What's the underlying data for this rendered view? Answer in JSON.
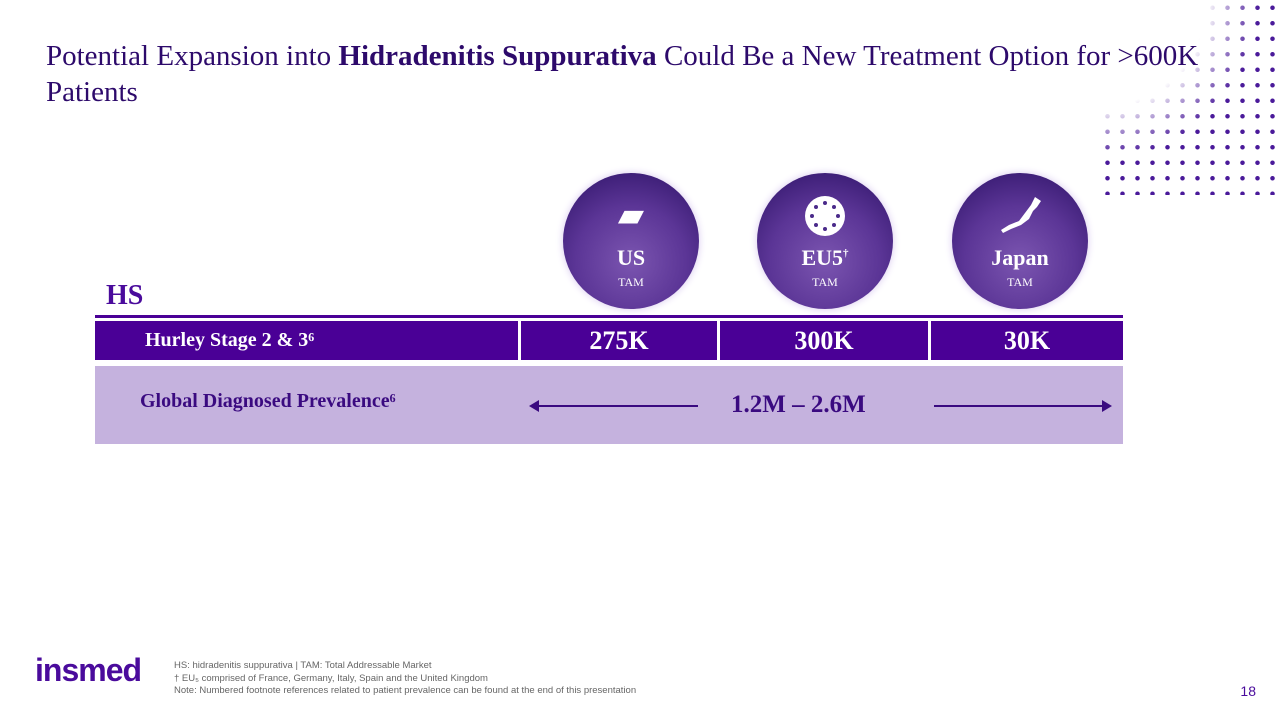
{
  "title": {
    "pre": "Potential Expansion into ",
    "bold": "Hidradenitis Suppurativa",
    "post": " Could Be a New Treatment Option for >600K Patients"
  },
  "regions": [
    {
      "name": "US",
      "sup": "",
      "tam": "TAM",
      "icon": "us-map-icon"
    },
    {
      "name": "EU5",
      "sup": "†",
      "tam": "TAM",
      "icon": "eu-flag-icon"
    },
    {
      "name": "Japan",
      "sup": "",
      "tam": "TAM",
      "icon": "japan-map-icon"
    }
  ],
  "table": {
    "section": "HS",
    "row_label": "Hurley Stage 2 & 3⁶",
    "values": [
      "275K",
      "300K",
      "30K"
    ],
    "global_label": "Global Diagnosed Prevalence⁶",
    "global_value": "1.2M – 2.6M"
  },
  "logo": "insmed",
  "footnotes": [
    "HS: hidradenitis suppurativa | TAM: Total Addressable Market",
    "† EU₅ comprised of France, Germany, Italy, Spain and the United Kingdom",
    "Note: Numbered footnote references related to patient prevalence can be found at the end of this presentation"
  ],
  "page_number": "18"
}
